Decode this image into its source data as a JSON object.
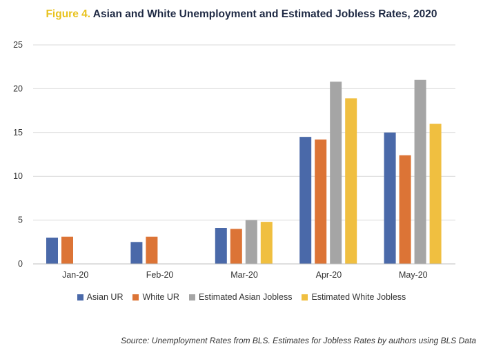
{
  "title": {
    "label": "Figure 4.",
    "text": "Asian and White Unemployment and Estimated Jobless Rates, 2020"
  },
  "source": "Source: Unemployment Rates from BLS. Estimates for Jobless Rates by authors using BLS Data",
  "chart_data": {
    "type": "bar",
    "categories": [
      "Jan-20",
      "Feb-20",
      "Mar-20",
      "Apr-20",
      "May-20"
    ],
    "series": [
      {
        "name": "Asian UR",
        "color": "#4a69a9",
        "values": [
          3.0,
          2.5,
          4.1,
          14.5,
          15.0
        ]
      },
      {
        "name": "White UR",
        "color": "#dc7436",
        "values": [
          3.1,
          3.1,
          4.0,
          14.2,
          12.4
        ]
      },
      {
        "name": "Estimated Asian Jobless",
        "color": "#a5a5a5",
        "values": [
          null,
          null,
          5.0,
          20.8,
          21.0
        ]
      },
      {
        "name": "Estimated White Jobless",
        "color": "#f0bf40",
        "values": [
          null,
          null,
          4.8,
          18.9,
          16.0
        ]
      }
    ],
    "ylim": [
      0,
      25
    ],
    "yticks": [
      0,
      5,
      10,
      15,
      20,
      25
    ],
    "grid": true,
    "legend_position": "bottom"
  }
}
